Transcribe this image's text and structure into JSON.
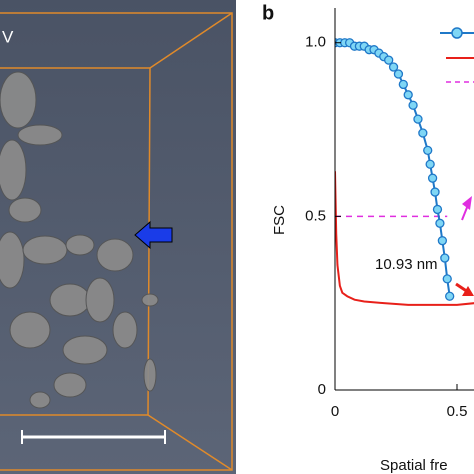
{
  "chart_data": {
    "type": "line",
    "panel_label": "b",
    "image_label": "V",
    "ylabel": "FSC",
    "xlabel": "Spatial fre",
    "annotation": "10.93 nm",
    "xlim": [
      0,
      0.57
    ],
    "ylim": [
      0,
      1.1
    ],
    "xticks": [
      0,
      0.5
    ],
    "yticks": [
      0,
      0.5,
      {
        "value": 1.0,
        "label": "1.0"
      }
    ],
    "threshold": 0.5,
    "series": [
      {
        "color": "#1f78c8",
        "marker": "circle",
        "x": [
          0,
          0.02,
          0.04,
          0.06,
          0.08,
          0.1,
          0.12,
          0.14,
          0.16,
          0.18,
          0.2,
          0.22,
          0.24,
          0.26,
          0.28,
          0.3,
          0.32,
          0.34,
          0.36,
          0.38,
          0.39,
          0.4,
          0.41,
          0.42,
          0.43,
          0.44,
          0.45,
          0.46,
          0.47
        ],
        "values": [
          1.0,
          1.0,
          1.0,
          1.0,
          0.99,
          0.99,
          0.99,
          0.98,
          0.98,
          0.97,
          0.96,
          0.95,
          0.93,
          0.91,
          0.88,
          0.85,
          0.82,
          0.78,
          0.74,
          0.69,
          0.65,
          0.61,
          0.57,
          0.52,
          0.48,
          0.43,
          0.38,
          0.32,
          0.27
        ]
      },
      {
        "color": "#e8201a",
        "marker": "none",
        "x": [
          0,
          0.005,
          0.01,
          0.02,
          0.03,
          0.05,
          0.08,
          0.12,
          0.2,
          0.3,
          0.4,
          0.5,
          0.57
        ],
        "values": [
          0.63,
          0.45,
          0.36,
          0.3,
          0.28,
          0.27,
          0.26,
          0.255,
          0.25,
          0.245,
          0.245,
          0.245,
          0.25
        ]
      }
    ]
  }
}
